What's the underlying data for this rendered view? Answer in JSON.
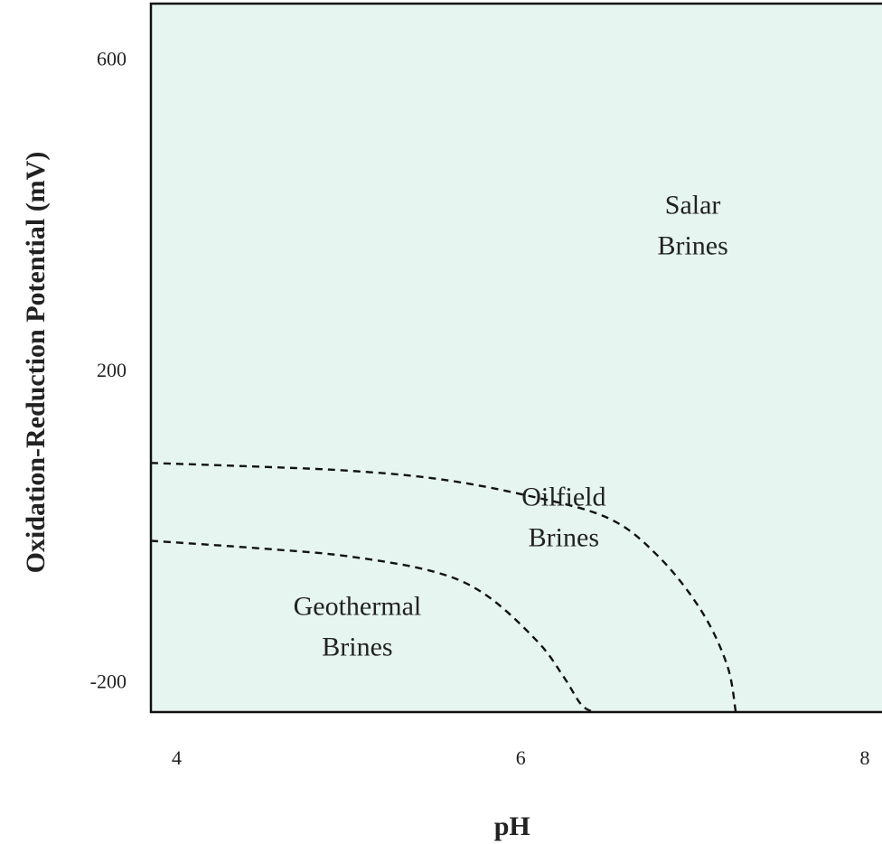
{
  "chart_data": {
    "type": "line",
    "xlabel": "pH",
    "ylabel": "Oxidation-Reduction Potential (mV)",
    "xlim": [
      3.85,
      8.1
    ],
    "ylim": [
      -240,
      670
    ],
    "xticks": [
      4,
      6,
      8
    ],
    "yticks": [
      600,
      200,
      -200
    ],
    "grid": false,
    "plot_background": "#e6f5ef",
    "series": [
      {
        "style": "dashed",
        "x": [
          3.85,
          4.5,
          5.0,
          5.5,
          5.8,
          6.1,
          6.25,
          6.35,
          6.42
        ],
        "y": [
          -20,
          -30,
          -40,
          -60,
          -90,
          -150,
          -195,
          -230,
          -240
        ]
      },
      {
        "style": "dashed",
        "x": [
          3.85,
          4.5,
          5.0,
          5.5,
          6.0,
          6.5,
          6.8,
          7.05,
          7.2,
          7.25
        ],
        "y": [
          80,
          75,
          70,
          60,
          40,
          10,
          -40,
          -110,
          -180,
          -240
        ]
      }
    ],
    "annotations": [
      {
        "text": [
          "Salar",
          "Brines"
        ],
        "x": 7.0,
        "y": 400
      },
      {
        "text": [
          "Oilfield",
          "Brines"
        ],
        "x": 6.25,
        "y": 25
      },
      {
        "text": [
          "Geothermal",
          "Brines"
        ],
        "x": 5.05,
        "y": -115
      }
    ]
  }
}
